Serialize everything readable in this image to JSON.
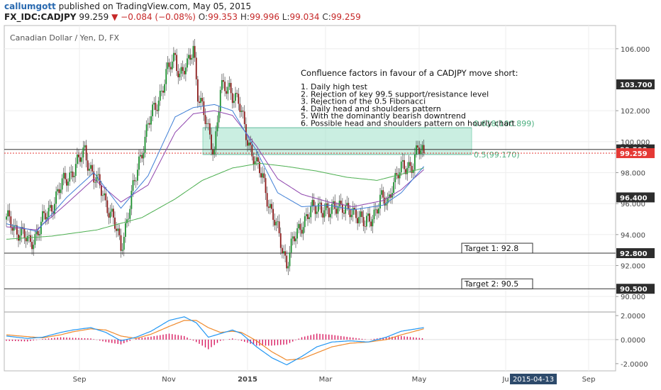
{
  "header": {
    "user": "callumgott",
    "published_on": "published on TradingView.com, May 05, 2015",
    "symbol": "FX_IDC:CADJPY",
    "last": "99.259",
    "change": "▼ −0.084 (−0.08%)",
    "open_label": "O:",
    "open": "99.353",
    "high_label": "H:",
    "high": "99.996",
    "low_label": "L:",
    "low": "99.034",
    "close_label": "C:",
    "close": "99.259"
  },
  "chart_data": {
    "type": "candlestick",
    "title": "Canadian Dollar / Yen, D, FX",
    "price_axis": {
      "range": [
        89.0,
        107.5
      ],
      "ticks": [
        "106.000",
        "102.000",
        "100.000",
        "98.000",
        "96.000",
        "94.000",
        "92.000",
        "90.000"
      ],
      "tick_values": [
        106,
        102,
        100,
        98,
        96,
        94,
        92,
        90
      ],
      "badges": [
        {
          "value": 103.7,
          "label": "103.700",
          "style": "dark"
        },
        {
          "value": 99.5,
          "label": "99.500",
          "style": "dark"
        },
        {
          "value": 99.259,
          "label": "99.259",
          "style": "red"
        },
        {
          "value": 96.4,
          "label": "96.400",
          "style": "dark"
        },
        {
          "value": 92.8,
          "label": "92.800",
          "style": "dark"
        },
        {
          "value": 90.5,
          "label": "90.500",
          "style": "dark"
        }
      ]
    },
    "time_axis": {
      "labels": [
        "Sep",
        "Nov",
        "2015",
        "Mar",
        "May",
        "Ju",
        "Sep"
      ],
      "highlight": "2015-04-13"
    },
    "levels": {
      "resistance": 99.5,
      "last": 99.259,
      "target1": 92.8,
      "target2": 90.5
    },
    "fib_zone": {
      "top": 100.899,
      "bottom": 99.17,
      "top_label": "0.618(100.899)",
      "bottom_label": "0.5(99.170)"
    },
    "annotation": {
      "title": "Confluence factors in favour of a CADJPY move short:",
      "lines": [
        "1. Daily high test",
        "2. Rejection of key 99.5 support/resistance level",
        "3. Rejection of the 0.5 Fibonacci",
        "4. Daily head and shoulders pattern",
        "5. With the dominantly bearish downtrend",
        "6. Possible head and shoulders pattern on hourly chart"
      ]
    },
    "targets": [
      "Target 1: 92.8",
      "Target 2: 90.5"
    ],
    "price_anchors": [
      [
        0,
        94.9
      ],
      [
        8,
        94.3
      ],
      [
        15,
        93.4
      ],
      [
        22,
        94.4
      ],
      [
        30,
        95.9
      ],
      [
        40,
        97.7
      ],
      [
        48,
        98.6
      ],
      [
        52,
        99.5
      ],
      [
        58,
        97.6
      ],
      [
        64,
        96.8
      ],
      [
        72,
        94.5
      ],
      [
        76,
        93.3
      ],
      [
        82,
        95.8
      ],
      [
        88,
        98.8
      ],
      [
        94,
        101.0
      ],
      [
        100,
        102.6
      ],
      [
        106,
        104.2
      ],
      [
        112,
        105.6
      ],
      [
        115,
        104.4
      ],
      [
        120,
        104.7
      ],
      [
        124,
        106.3
      ],
      [
        127,
        103.2
      ],
      [
        131,
        101.6
      ],
      [
        136,
        100.1
      ],
      [
        138,
        99.5
      ],
      [
        142,
        103.2
      ],
      [
        148,
        103.6
      ],
      [
        154,
        102.4
      ],
      [
        160,
        100.3
      ],
      [
        166,
        98.3
      ],
      [
        170,
        97.8
      ],
      [
        176,
        95.3
      ],
      [
        182,
        93.6
      ],
      [
        186,
        92.2
      ],
      [
        190,
        93.4
      ],
      [
        196,
        94.8
      ],
      [
        202,
        95.4
      ],
      [
        208,
        96.0
      ],
      [
        214,
        95.2
      ],
      [
        220,
        96.2
      ],
      [
        226,
        95.3
      ],
      [
        232,
        95.6
      ],
      [
        238,
        94.5
      ],
      [
        243,
        95.3
      ],
      [
        248,
        96.2
      ],
      [
        253,
        96.0
      ],
      [
        256,
        97.4
      ],
      [
        262,
        98.1
      ],
      [
        266,
        98.5
      ],
      [
        270,
        98.6
      ],
      [
        273,
        99.4
      ],
      [
        277,
        99.26
      ]
    ],
    "ma_fast": [
      [
        0,
        94.7
      ],
      [
        20,
        94.2
      ],
      [
        40,
        96.4
      ],
      [
        58,
        98.0
      ],
      [
        76,
        95.7
      ],
      [
        94,
        97.8
      ],
      [
        112,
        101.6
      ],
      [
        124,
        102.2
      ],
      [
        138,
        102.4
      ],
      [
        150,
        102.0
      ],
      [
        166,
        99.4
      ],
      [
        180,
        96.7
      ],
      [
        196,
        95.8
      ],
      [
        214,
        95.9
      ],
      [
        230,
        95.6
      ],
      [
        250,
        95.9
      ],
      [
        262,
        96.7
      ],
      [
        277,
        98.4
      ]
    ],
    "ma_mid": [
      [
        0,
        94.5
      ],
      [
        20,
        94.3
      ],
      [
        40,
        96.0
      ],
      [
        58,
        97.6
      ],
      [
        76,
        96.1
      ],
      [
        94,
        97.2
      ],
      [
        112,
        100.6
      ],
      [
        124,
        101.8
      ],
      [
        138,
        102.0
      ],
      [
        150,
        101.7
      ],
      [
        166,
        99.7
      ],
      [
        180,
        97.6
      ],
      [
        196,
        96.6
      ],
      [
        214,
        96.1
      ],
      [
        230,
        95.8
      ],
      [
        250,
        96.2
      ],
      [
        262,
        96.9
      ],
      [
        277,
        98.2
      ]
    ],
    "ma_slow": [
      [
        0,
        93.7
      ],
      [
        30,
        93.9
      ],
      [
        60,
        94.3
      ],
      [
        90,
        95.1
      ],
      [
        112,
        96.3
      ],
      [
        130,
        97.5
      ],
      [
        150,
        98.3
      ],
      [
        168,
        98.6
      ],
      [
        186,
        98.4
      ],
      [
        206,
        98.1
      ],
      [
        226,
        97.7
      ],
      [
        246,
        97.5
      ],
      [
        262,
        97.9
      ],
      [
        277,
        98.3
      ]
    ],
    "oscillator": {
      "ticks": [
        "2.0000",
        "0.0000",
        "-2.0000"
      ],
      "tick_values": [
        2,
        0,
        -2
      ],
      "range": [
        -2.6,
        2.3
      ],
      "macd": [
        [
          0,
          0.3
        ],
        [
          14,
          0.1
        ],
        [
          24,
          0.2
        ],
        [
          36,
          0.6
        ],
        [
          44,
          0.8
        ],
        [
          56,
          1.0
        ],
        [
          66,
          0.6
        ],
        [
          76,
          -0.1
        ],
        [
          86,
          0.2
        ],
        [
          96,
          0.7
        ],
        [
          108,
          1.6
        ],
        [
          118,
          1.9
        ],
        [
          126,
          1.4
        ],
        [
          134,
          0.2
        ],
        [
          142,
          0.5
        ],
        [
          150,
          0.8
        ],
        [
          156,
          0.5
        ],
        [
          166,
          -0.6
        ],
        [
          176,
          -1.5
        ],
        [
          186,
          -2.1
        ],
        [
          196,
          -1.4
        ],
        [
          206,
          -0.6
        ],
        [
          216,
          -0.2
        ],
        [
          228,
          -0.1
        ],
        [
          240,
          -0.2
        ],
        [
          252,
          0.2
        ],
        [
          262,
          0.7
        ],
        [
          277,
          1.0
        ]
      ],
      "signal": [
        [
          0,
          0.4
        ],
        [
          14,
          0.25
        ],
        [
          24,
          0.15
        ],
        [
          36,
          0.4
        ],
        [
          44,
          0.65
        ],
        [
          56,
          0.9
        ],
        [
          66,
          0.8
        ],
        [
          76,
          0.3
        ],
        [
          86,
          0.1
        ],
        [
          96,
          0.45
        ],
        [
          108,
          1.1
        ],
        [
          118,
          1.6
        ],
        [
          126,
          1.6
        ],
        [
          134,
          1.0
        ],
        [
          142,
          0.6
        ],
        [
          150,
          0.7
        ],
        [
          156,
          0.6
        ],
        [
          166,
          -0.1
        ],
        [
          176,
          -1.0
        ],
        [
          186,
          -1.7
        ],
        [
          196,
          -1.6
        ],
        [
          206,
          -1.1
        ],
        [
          216,
          -0.6
        ],
        [
          228,
          -0.3
        ],
        [
          240,
          -0.2
        ],
        [
          252,
          0.0
        ],
        [
          262,
          0.4
        ],
        [
          277,
          0.9
        ]
      ]
    }
  }
}
